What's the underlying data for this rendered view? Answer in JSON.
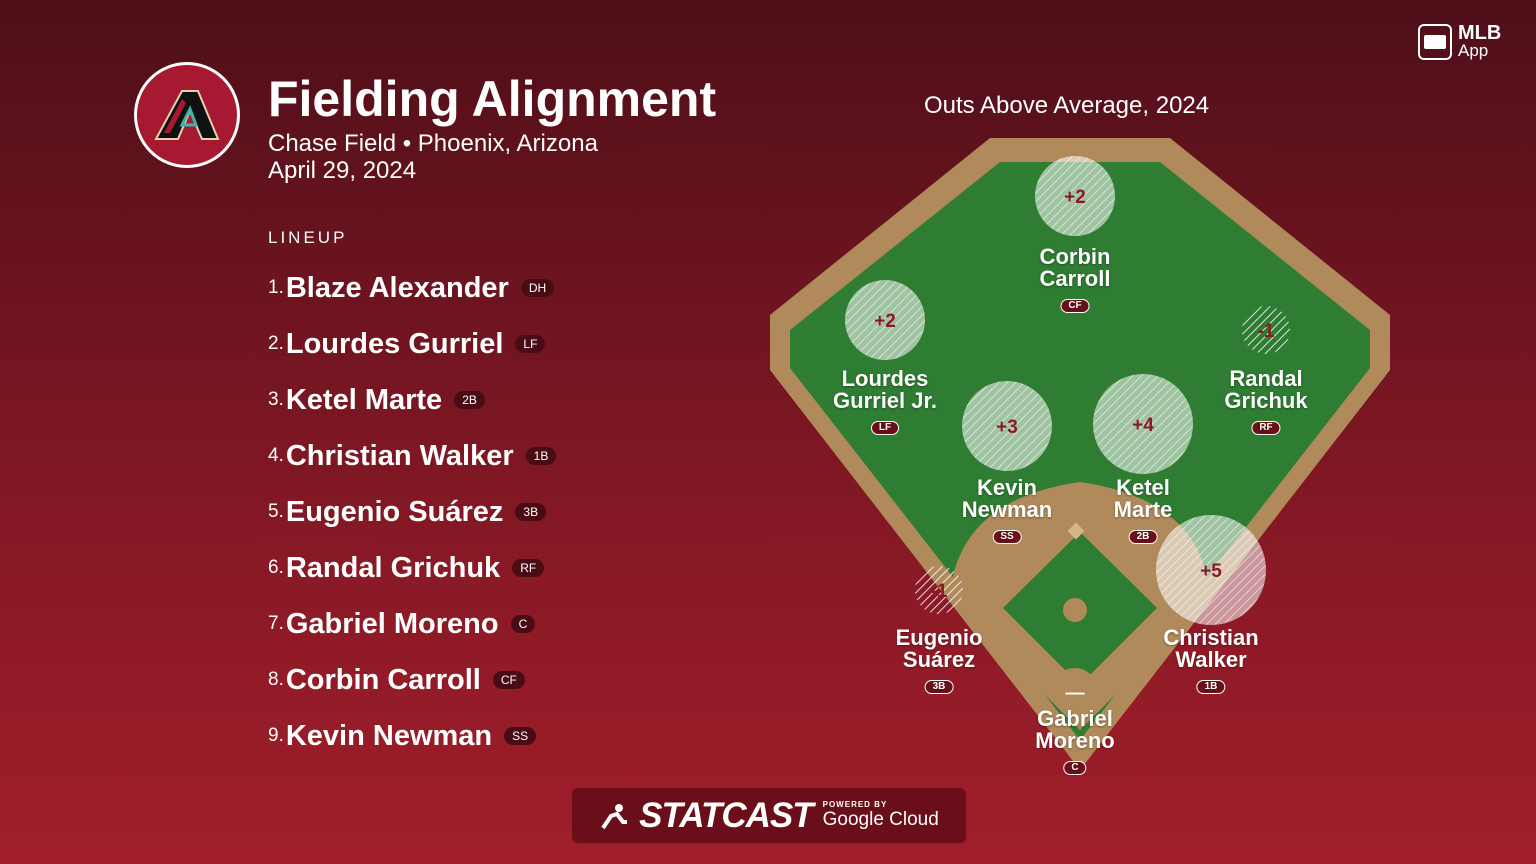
{
  "brand": {
    "app_name": "MLB",
    "app_sub": "App"
  },
  "header": {
    "title": "Fielding Alignment",
    "venue": "Chase Field • Phoenix, Arizona",
    "date": "April 29, 2024"
  },
  "lineup": {
    "heading": "LINEUP",
    "players": [
      {
        "num": "1.",
        "name": "Blaze Alexander",
        "pos": "DH"
      },
      {
        "num": "2.",
        "name": "Lourdes Gurriel",
        "pos": "LF"
      },
      {
        "num": "3.",
        "name": "Ketel Marte",
        "pos": "2B"
      },
      {
        "num": "4.",
        "name": "Christian Walker",
        "pos": "1B"
      },
      {
        "num": "5.",
        "name": "Eugenio Suárez",
        "pos": "3B"
      },
      {
        "num": "6.",
        "name": "Randal Grichuk",
        "pos": "RF"
      },
      {
        "num": "7.",
        "name": "Gabriel Moreno",
        "pos": "C"
      },
      {
        "num": "8.",
        "name": "Corbin Carroll",
        "pos": "CF"
      },
      {
        "num": "9.",
        "name": "Kevin Newman",
        "pos": "SS"
      }
    ]
  },
  "field": {
    "title": "Outs Above Average, 2024",
    "positions": [
      {
        "first": "Corbin",
        "last": "Carroll",
        "pos": "CF",
        "oaa": "+2",
        "oaa_value": 2
      },
      {
        "first": "Lourdes",
        "last": "Gurriel Jr.",
        "pos": "LF",
        "oaa": "+2",
        "oaa_value": 2
      },
      {
        "first": "Randal",
        "last": "Grichuk",
        "pos": "RF",
        "oaa": "-1",
        "oaa_value": -1
      },
      {
        "first": "Kevin",
        "last": "Newman",
        "pos": "SS",
        "oaa": "+3",
        "oaa_value": 3
      },
      {
        "first": "Ketel",
        "last": "Marte",
        "pos": "2B",
        "oaa": "+4",
        "oaa_value": 4
      },
      {
        "first": "Eugenio",
        "last": "Suárez",
        "pos": "3B",
        "oaa": "-1",
        "oaa_value": -1
      },
      {
        "first": "Christian",
        "last": "Walker",
        "pos": "1B",
        "oaa": "+5",
        "oaa_value": 5
      },
      {
        "first": "Gabriel",
        "last": "Moreno",
        "pos": "C",
        "oaa": "—",
        "oaa_value": null
      }
    ]
  },
  "footer": {
    "statcast": "STATCAST",
    "powered_by": "POWERED BY",
    "partner": "Google Cloud"
  },
  "colors": {
    "grass": "#2e7d32",
    "dirt": "#b08a5a",
    "badge": "#4a0c14",
    "oaa_text": "#8a1a26"
  }
}
